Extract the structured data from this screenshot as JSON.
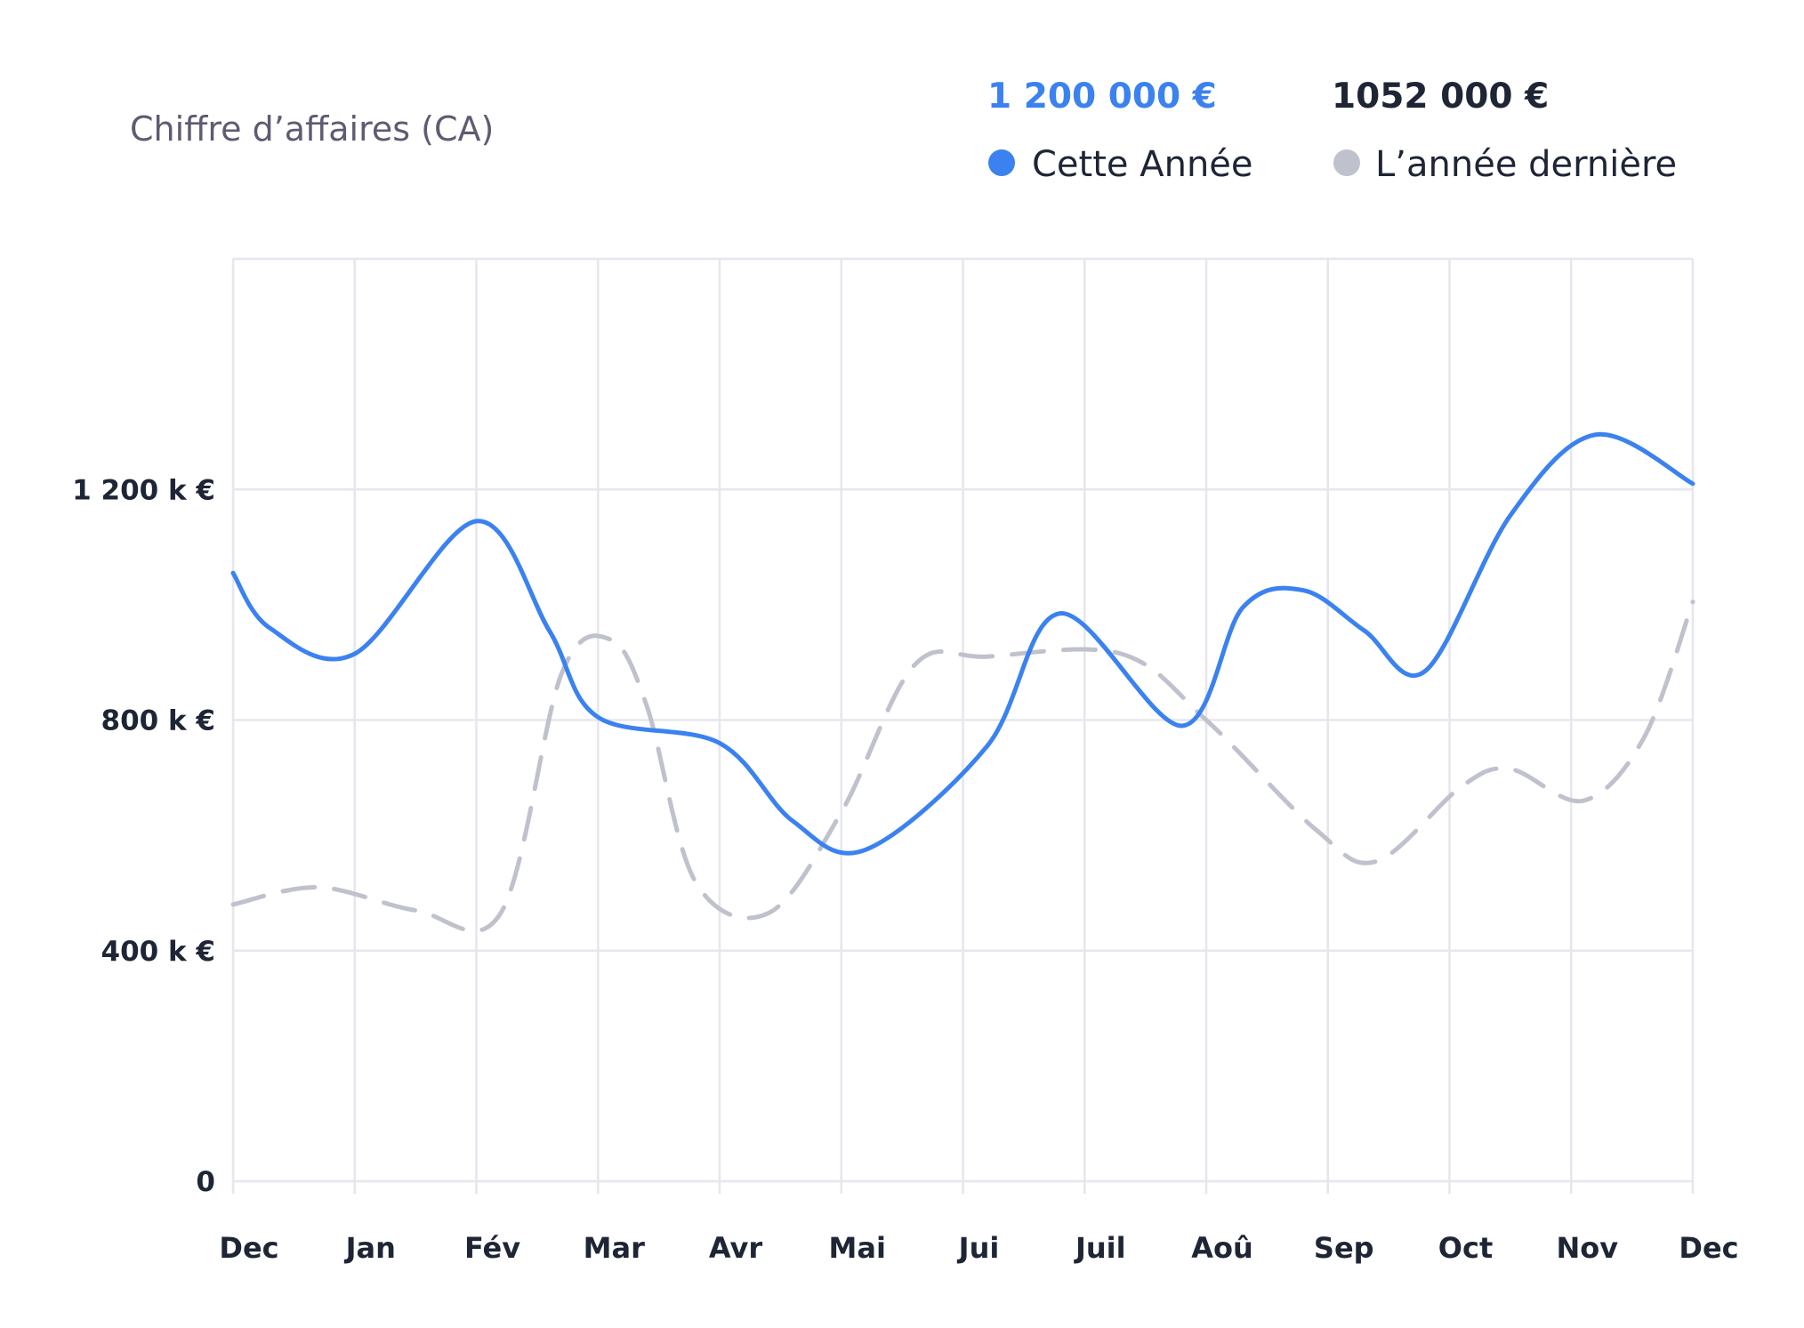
{
  "chart_data": {
    "type": "line",
    "title": "Chiffre d’affaires (CA)",
    "categories": [
      "Dec",
      "Jan",
      "Fév",
      "Mar",
      "Avr",
      "Mai",
      "Jui",
      "Juil",
      "Aoû",
      "Sep",
      "Oct",
      "Nov",
      "Dec"
    ],
    "yticks": [
      {
        "value": 0,
        "label": "0"
      },
      {
        "value": 400,
        "label": "400 k €"
      },
      {
        "value": 800,
        "label": "800 k €"
      },
      {
        "value": 1200,
        "label": "1 200 k €"
      }
    ],
    "ylim": [
      0,
      1600
    ],
    "grid": true,
    "legend_position": "top-right",
    "series": [
      {
        "name": "Cette Année",
        "total": "1 200 000 €",
        "color": "#3b82f0",
        "style": "solid",
        "points": [
          [
            0,
            1055
          ],
          [
            0.3,
            960
          ],
          [
            1,
            915
          ],
          [
            2,
            1145
          ],
          [
            2.6,
            955
          ],
          [
            3,
            805
          ],
          [
            4,
            760
          ],
          [
            4.6,
            625
          ],
          [
            5.2,
            575
          ],
          [
            6.2,
            755
          ],
          [
            6.8,
            985
          ],
          [
            7.8,
            790
          ],
          [
            8.3,
            995
          ],
          [
            8.8,
            1025
          ],
          [
            9.3,
            955
          ],
          [
            9.8,
            885
          ],
          [
            10.5,
            1155
          ],
          [
            11.2,
            1295
          ],
          [
            12,
            1210
          ]
        ]
      },
      {
        "name": "L’année dernière",
        "total": "1052 000 €",
        "color": "#bfc2cc",
        "style": "dashed",
        "points": [
          [
            0,
            480
          ],
          [
            0.7,
            510
          ],
          [
            1.5,
            470
          ],
          [
            2.2,
            465
          ],
          [
            2.7,
            880
          ],
          [
            3.1,
            940
          ],
          [
            3.4,
            825
          ],
          [
            3.8,
            520
          ],
          [
            4.4,
            465
          ],
          [
            5.0,
            640
          ],
          [
            5.6,
            895
          ],
          [
            6.2,
            910
          ],
          [
            7.3,
            915
          ],
          [
            8.0,
            800
          ],
          [
            8.9,
            610
          ],
          [
            9.4,
            555
          ],
          [
            10.1,
            685
          ],
          [
            10.5,
            715
          ],
          [
            11.1,
            660
          ],
          [
            11.6,
            770
          ],
          [
            12,
            1005
          ]
        ]
      }
    ]
  }
}
